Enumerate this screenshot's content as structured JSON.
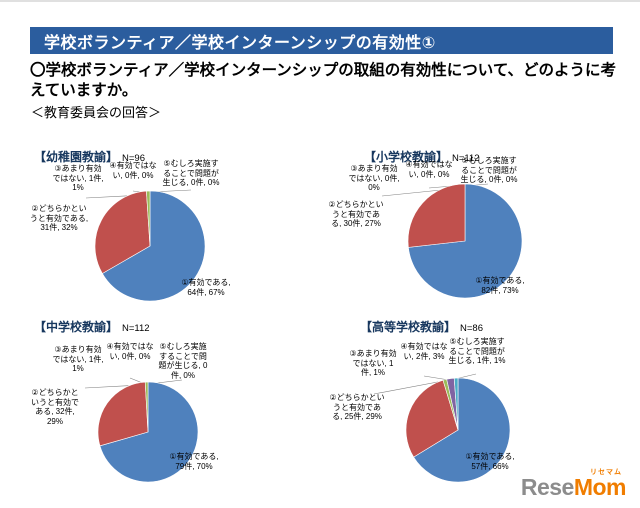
{
  "page": {
    "title_bar": "学校ボランティア／学校インターンシップの有効性①",
    "question": "〇学校ボランティア／学校インターンシップの取組の有効性について、どのように考えていますか。",
    "answer_heading": "＜教育委員会の回答＞"
  },
  "colors": {
    "title_bar_bg": "#2B5D9E",
    "chart_title": "#17375E",
    "series": [
      "#4F81BD",
      "#C0504D",
      "#9BBB59",
      "#8064A2",
      "#4BACC6"
    ]
  },
  "chart_data": [
    {
      "type": "pie",
      "title": "【幼稚園教諭】",
      "n_label": "N=96",
      "categories": [
        "①有効である",
        "②どちらかというと有効である",
        "③あまり有効ではない",
        "④有効ではない",
        "⑤むしろ実施することで問題が生じる"
      ],
      "values": [
        64,
        31,
        1,
        0,
        0
      ],
      "percents": [
        67,
        32,
        1,
        0,
        0
      ],
      "labels": [
        "①有効である, 64件, 67%",
        "②どちらかというと有効である, 31件, 32%",
        "③あまり有効ではない, 1件, 1%",
        "④有効ではない, 0件, 0%",
        "⑤むしろ実施することで問題が生じる, 0件, 0%"
      ]
    },
    {
      "type": "pie",
      "title": "【小学校教諭】",
      "n_label": "N=112",
      "categories": [
        "①有効である",
        "②どちらかというと有効である",
        "③あまり有効ではない",
        "④有効ではない",
        "⑤むしろ実施することで問題が生じる"
      ],
      "values": [
        82,
        30,
        0,
        0,
        0
      ],
      "percents": [
        73,
        27,
        0,
        0,
        0
      ],
      "labels": [
        "①有効である, 82件, 73%",
        "②どちらかというと有効である, 30件, 27%",
        "③あまり有効ではない, 0件, 0%",
        "④有効ではない, 0件, 0%",
        "⑤むしろ実施することで問題が生じる, 0件, 0%"
      ]
    },
    {
      "type": "pie",
      "title": "【中学校教諭】",
      "n_label": "N=112",
      "categories": [
        "①有効である",
        "②どちらかというと有効である",
        "③あまり有効ではない",
        "④有効ではない",
        "⑤むしろ実施することで問題が生じる"
      ],
      "values": [
        79,
        32,
        1,
        0,
        0
      ],
      "percents": [
        70,
        29,
        1,
        0,
        0
      ],
      "labels": [
        "①有効である, 79件, 70%",
        "②どちらかというと有効である, 32件, 29%",
        "③あまり有効ではない, 1件, 1%",
        "④有効ではない, 0件, 0%",
        "⑤むしろ実施することで問題が生じる, 0件, 0%"
      ]
    },
    {
      "type": "pie",
      "title": "【高等学校教諭】",
      "n_label": "N=86",
      "categories": [
        "①有効である",
        "②どちらかというと有効である",
        "③あまり有効ではない",
        "④有効ではない",
        "⑤むしろ実施することで問題が生じる"
      ],
      "values": [
        57,
        25,
        1,
        2,
        1
      ],
      "percents": [
        66,
        29,
        1,
        3,
        1
      ],
      "labels": [
        "①有効である, 57件, 66%",
        "②どちらかというと有効である, 25件, 29%",
        "③あまり有効ではない, 1件, 1%",
        "④有効ではない, 2件, 3%",
        "⑤むしろ実施することで問題が生じる, 1件, 1%"
      ]
    }
  ],
  "logo": {
    "text_gray": "Rese",
    "text_orange": "Mom",
    "ruby": "リセマム"
  }
}
